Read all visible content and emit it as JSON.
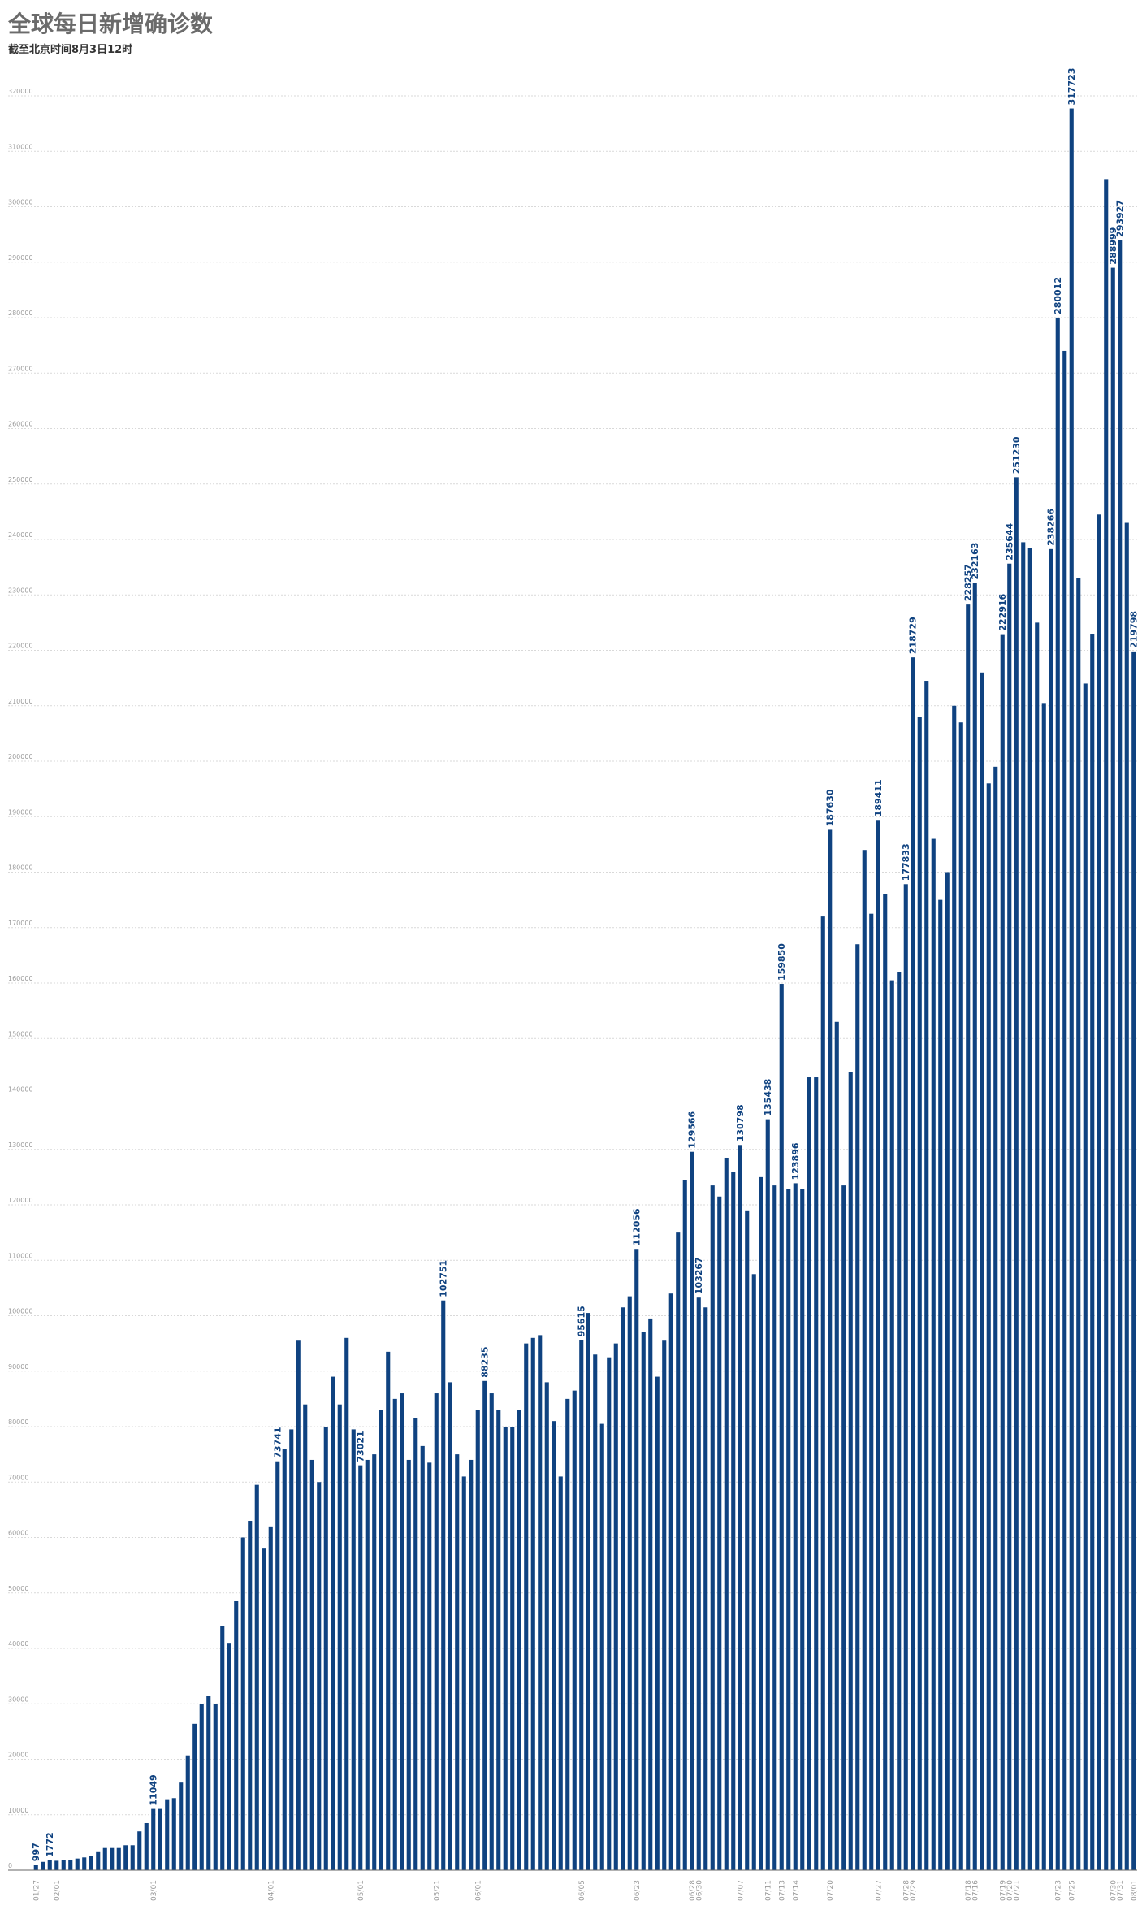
{
  "title": "全球每日新增确诊数",
  "subtitle": "截至北京时间8月3日12时",
  "colors": {
    "bar": "#0f4280",
    "title": "#6b6b6b",
    "grid": "#d9d9d9"
  },
  "chart_data": {
    "type": "bar",
    "title": "全球每日新增确诊数",
    "subtitle": "截至北京时间8月3日12时",
    "ylim": [
      0,
      330000
    ],
    "yticks": [
      0,
      10000,
      20000,
      30000,
      40000,
      50000,
      60000,
      70000,
      80000,
      90000,
      100000,
      110000,
      120000,
      130000,
      140000,
      150000,
      160000,
      170000,
      180000,
      190000,
      200000,
      210000,
      220000,
      230000,
      240000,
      250000,
      260000,
      270000,
      280000,
      290000,
      300000,
      310000,
      320000
    ],
    "grid": true,
    "values": [
      997,
      1500,
      1772,
      1700,
      1800,
      1900,
      2100,
      2300,
      2600,
      3400,
      4000,
      4000,
      4000,
      4500,
      4500,
      7000,
      8500,
      11049,
      11049,
      12800,
      13000,
      15800,
      20700,
      26400,
      30000,
      31500,
      30000,
      44000,
      41000,
      48500,
      60000,
      63000,
      69500,
      58000,
      62000,
      73741,
      76000,
      79500,
      95500,
      84000,
      74000,
      70000,
      80000,
      89000,
      84000,
      96000,
      79500,
      73021,
      74000,
      75000,
      83000,
      93500,
      85000,
      86000,
      74000,
      81500,
      76500,
      73500,
      86000,
      102751,
      88000,
      75000,
      71000,
      74000,
      83000,
      88235,
      86000,
      83000,
      80000,
      80000,
      83000,
      95000,
      96000,
      96500,
      88000,
      81000,
      71000,
      85000,
      86500,
      95615,
      100500,
      93000,
      80500,
      92500,
      95000,
      101500,
      103500,
      112056,
      97000,
      99500,
      89000,
      95500,
      104000,
      115000,
      124500,
      129566,
      103267,
      101500,
      123500,
      121500,
      128500,
      126000,
      130798,
      119000,
      107500,
      125000,
      135438,
      123500,
      159850,
      122800,
      123896,
      122800,
      143000,
      143000,
      172000,
      187630,
      153000,
      123500,
      144000,
      167000,
      184000,
      172500,
      189411,
      176000,
      160500,
      162000,
      177833,
      218729,
      208000,
      214500,
      186000,
      175000,
      180000,
      210000,
      207000,
      228257,
      232163,
      216000,
      196000,
      199000,
      222916,
      235644,
      251230,
      239500,
      238500,
      225000,
      210500,
      238266,
      280012,
      274000,
      317723,
      233000,
      214000,
      223000,
      244500,
      305000,
      288999,
      293927,
      243000,
      219798
    ],
    "data_labels": [
      {
        "index": 0,
        "text": "997"
      },
      {
        "index": 2,
        "text": "1772"
      },
      {
        "index": 17,
        "text": "11049"
      },
      {
        "index": 35,
        "text": "73741"
      },
      {
        "index": 47,
        "text": "73021"
      },
      {
        "index": 59,
        "text": "102751"
      },
      {
        "index": 65,
        "text": "88235"
      },
      {
        "index": 79,
        "text": "95615"
      },
      {
        "index": 87,
        "text": "112056"
      },
      {
        "index": 95,
        "text": "129566"
      },
      {
        "index": 96,
        "text": "103267"
      },
      {
        "index": 102,
        "text": "130798"
      },
      {
        "index": 106,
        "text": "135438"
      },
      {
        "index": 108,
        "text": "159850"
      },
      {
        "index": 110,
        "text": "123896"
      },
      {
        "index": 115,
        "text": "187630"
      },
      {
        "index": 122,
        "text": "189411"
      },
      {
        "index": 126,
        "text": "177833"
      },
      {
        "index": 127,
        "text": "218729"
      },
      {
        "index": 135,
        "text": "228257"
      },
      {
        "index": 136,
        "text": "232163"
      },
      {
        "index": 140,
        "text": "222916"
      },
      {
        "index": 141,
        "text": "235644"
      },
      {
        "index": 142,
        "text": "251230"
      },
      {
        "index": 147,
        "text": "238266"
      },
      {
        "index": 148,
        "text": "280012"
      },
      {
        "index": 150,
        "text": "317723"
      },
      {
        "index": 156,
        "text": "288999"
      },
      {
        "index": 157,
        "text": "293927"
      },
      {
        "index": 159,
        "text": "219798"
      }
    ],
    "x_tick_labels": [
      {
        "index": 0,
        "text": "01/27"
      },
      {
        "index": 3,
        "text": "02/01"
      },
      {
        "index": 17,
        "text": "03/01"
      },
      {
        "index": 34,
        "text": "04/01"
      },
      {
        "index": 47,
        "text": "05/01"
      },
      {
        "index": 58,
        "text": "05/21"
      },
      {
        "index": 64,
        "text": "06/01"
      },
      {
        "index": 79,
        "text": "06/05"
      },
      {
        "index": 87,
        "text": "06/23"
      },
      {
        "index": 95,
        "text": "06/28"
      },
      {
        "index": 96,
        "text": "06/30"
      },
      {
        "index": 102,
        "text": "07/07"
      },
      {
        "index": 106,
        "text": "07/11"
      },
      {
        "index": 108,
        "text": "07/13"
      },
      {
        "index": 110,
        "text": "07/14"
      },
      {
        "index": 115,
        "text": "07/20"
      },
      {
        "index": 122,
        "text": "07/27"
      },
      {
        "index": 126,
        "text": "07/28"
      },
      {
        "index": 127,
        "text": "07/29"
      },
      {
        "index": 135,
        "text": "07/18"
      },
      {
        "index": 136,
        "text": "07/16"
      },
      {
        "index": 140,
        "text": "07/19"
      },
      {
        "index": 141,
        "text": "07/20"
      },
      {
        "index": 142,
        "text": "07/21"
      },
      {
        "index": 148,
        "text": "07/23"
      },
      {
        "index": 150,
        "text": "07/25"
      },
      {
        "index": 156,
        "text": "07/30"
      },
      {
        "index": 157,
        "text": "07/31"
      },
      {
        "index": 159,
        "text": "08/01"
      }
    ]
  }
}
